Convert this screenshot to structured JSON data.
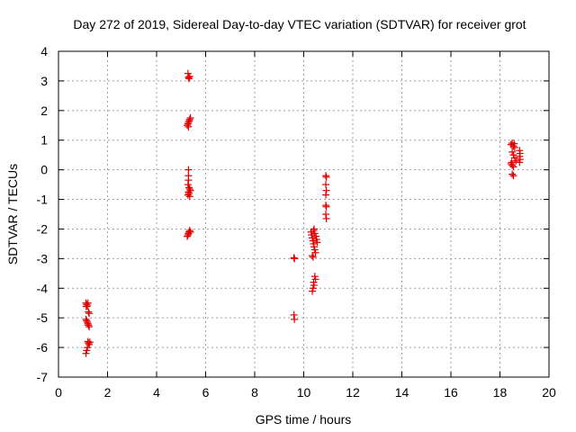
{
  "chart_data": {
    "type": "scatter",
    "title": "Day 272 of 2019, Sidereal Day-to-day VTEC variation (SDTVAR) for receiver grot",
    "xlabel": "GPS time / hours",
    "ylabel": "SDTVAR / TECUs",
    "xlim": [
      0,
      20
    ],
    "ylim": [
      -7,
      4
    ],
    "xticks": [
      0,
      2,
      4,
      6,
      8,
      10,
      12,
      14,
      16,
      18,
      20
    ],
    "yticks": [
      -7,
      -6,
      -5,
      -4,
      -3,
      -2,
      -1,
      0,
      1,
      2,
      3,
      4
    ],
    "grid": true,
    "marker": "plus",
    "color": "#e00000",
    "series": [
      {
        "name": "SDTVAR",
        "points": [
          [
            1.12,
            -4.5
          ],
          [
            1.15,
            -4.55
          ],
          [
            1.18,
            -4.6
          ],
          [
            1.2,
            -4.5
          ],
          [
            1.13,
            -4.62
          ],
          [
            1.22,
            -4.8
          ],
          [
            1.25,
            -4.85
          ],
          [
            1.12,
            -5.05
          ],
          [
            1.15,
            -5.1
          ],
          [
            1.18,
            -5.15
          ],
          [
            1.2,
            -5.2
          ],
          [
            1.22,
            -5.25
          ],
          [
            1.25,
            -5.3
          ],
          [
            1.2,
            -5.8
          ],
          [
            1.22,
            -5.85
          ],
          [
            1.25,
            -5.9
          ],
          [
            1.28,
            -5.82
          ],
          [
            1.18,
            -6.0
          ],
          [
            1.15,
            -6.1
          ],
          [
            1.12,
            -6.2
          ],
          [
            5.28,
            3.25
          ],
          [
            5.3,
            3.12
          ],
          [
            5.32,
            3.08
          ],
          [
            5.35,
            3.15
          ],
          [
            5.25,
            1.5
          ],
          [
            5.28,
            1.55
          ],
          [
            5.3,
            1.6
          ],
          [
            5.33,
            1.65
          ],
          [
            5.35,
            1.7
          ],
          [
            5.38,
            1.75
          ],
          [
            5.3,
            1.45
          ],
          [
            5.3,
            0.0
          ],
          [
            5.3,
            -0.2
          ],
          [
            5.3,
            -0.35
          ],
          [
            5.28,
            -0.5
          ],
          [
            5.32,
            -0.6
          ],
          [
            5.35,
            -0.65
          ],
          [
            5.38,
            -0.7
          ],
          [
            5.3,
            -0.75
          ],
          [
            5.32,
            -0.8
          ],
          [
            5.28,
            -0.85
          ],
          [
            5.35,
            -0.9
          ],
          [
            5.25,
            -2.25
          ],
          [
            5.28,
            -2.2
          ],
          [
            5.3,
            -2.15
          ],
          [
            5.32,
            -2.1
          ],
          [
            5.35,
            -2.05
          ],
          [
            5.38,
            -2.1
          ],
          [
            9.6,
            -2.97
          ],
          [
            9.62,
            -3.0
          ],
          [
            9.6,
            -4.9
          ],
          [
            9.62,
            -5.05
          ],
          [
            10.3,
            -2.1
          ],
          [
            10.32,
            -2.2
          ],
          [
            10.35,
            -2.3
          ],
          [
            10.38,
            -2.4
          ],
          [
            10.4,
            -2.5
          ],
          [
            10.42,
            -2.6
          ],
          [
            10.45,
            -2.7
          ],
          [
            10.48,
            -2.8
          ],
          [
            10.35,
            -2.9
          ],
          [
            10.38,
            -2.95
          ],
          [
            10.4,
            -2.05
          ],
          [
            10.45,
            -2.15
          ],
          [
            10.5,
            -2.25
          ],
          [
            10.52,
            -2.35
          ],
          [
            10.55,
            -2.45
          ],
          [
            10.42,
            -2.0
          ],
          [
            10.45,
            -3.6
          ],
          [
            10.48,
            -3.7
          ],
          [
            10.4,
            -3.8
          ],
          [
            10.42,
            -3.9
          ],
          [
            10.38,
            -4.0
          ],
          [
            10.35,
            -4.1
          ],
          [
            10.9,
            -0.2
          ],
          [
            10.92,
            -0.25
          ],
          [
            10.9,
            -0.5
          ],
          [
            10.92,
            -0.7
          ],
          [
            10.9,
            -0.85
          ],
          [
            10.9,
            -1.2
          ],
          [
            10.92,
            -1.25
          ],
          [
            10.9,
            -1.5
          ],
          [
            10.92,
            -1.65
          ],
          [
            18.45,
            0.85
          ],
          [
            18.5,
            0.9
          ],
          [
            18.55,
            0.8
          ],
          [
            18.58,
            0.88
          ],
          [
            18.6,
            0.75
          ],
          [
            18.5,
            0.6
          ],
          [
            18.55,
            0.5
          ],
          [
            18.6,
            0.4
          ],
          [
            18.65,
            0.3
          ],
          [
            18.45,
            0.2
          ],
          [
            18.5,
            0.15
          ],
          [
            18.55,
            0.1
          ],
          [
            18.48,
            0.25
          ],
          [
            18.5,
            -0.15
          ],
          [
            18.55,
            -0.2
          ],
          [
            18.8,
            0.65
          ],
          [
            18.82,
            0.55
          ],
          [
            18.8,
            0.45
          ],
          [
            18.82,
            0.35
          ],
          [
            18.8,
            0.25
          ]
        ]
      }
    ]
  }
}
